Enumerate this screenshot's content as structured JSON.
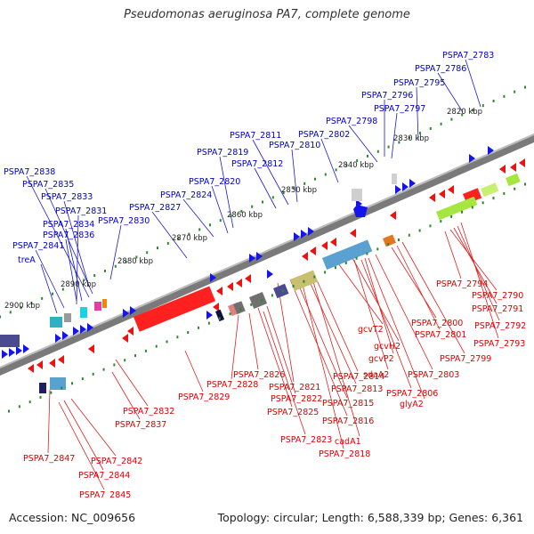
{
  "title": "Pseudomonas aeruginosa PA7, complete genome",
  "accession": "Accession: NC_009656",
  "topology": "Topology: circular; Length: 6,588,339 bp; Genes: 6,361",
  "colors": {
    "forward_label": "#0000cc",
    "reverse_label": "#dd0000",
    "backbone": "#888888",
    "ticks": "#2a8a2a"
  },
  "kbp_ticks": [
    "2820 kbp",
    "2830 kbp",
    "2840 kbp",
    "2850 kbp",
    "2860 kbp",
    "2870 kbp",
    "2880 kbp",
    "2890 kbp",
    "2900 kbp"
  ],
  "forward_labels": [
    "PSPA7_2783",
    "PSPA7_2786",
    "PSPA7_2795",
    "PSPA7_2796",
    "PSPA7_2797",
    "PSPA7_2798",
    "PSPA7_2802",
    "PSPA7_2811",
    "PSPA7_2810",
    "PSPA7_2812",
    "PSPA7_2819",
    "PSPA7_2820",
    "PSPA7_2824",
    "PSPA7_2827",
    "PSPA7_2830",
    "PSPA7_2838",
    "PSPA7_2835",
    "PSPA7_2833",
    "PSPA7_2831",
    "PSPA7_2834",
    "PSPA7_2836",
    "PSPA7_2841",
    "treA"
  ],
  "reverse_labels": [
    "PSPA7_2794",
    "PSPA7_2790",
    "PSPA7_2791",
    "PSPA7_2792",
    "PSPA7_2793",
    "PSPA7_2800",
    "PSPA7_2801",
    "PSPA7_2799",
    "gcvT2",
    "gcvH2",
    "sdaA2",
    "gcvP2",
    "PSPA7_2803",
    "PSPA7_2806",
    "glyA2",
    "PSPA7_2814",
    "PSPA7_2813",
    "PSPA7_2815",
    "PSPA7_2816",
    "PSPA7_2821",
    "PSPA7_2826",
    "PSPA7_2828",
    "PSPA7_2822",
    "PSPA7_2825",
    "PSPA7_2823",
    "cadA1",
    "PSPA7_2818",
    "PSPA7_2829",
    "PSPA7_2832",
    "PSPA7_2837",
    "PSPA7_2847",
    "PSPA7_2842",
    "PSPA7_2844",
    "PSPA7_2845"
  ]
}
